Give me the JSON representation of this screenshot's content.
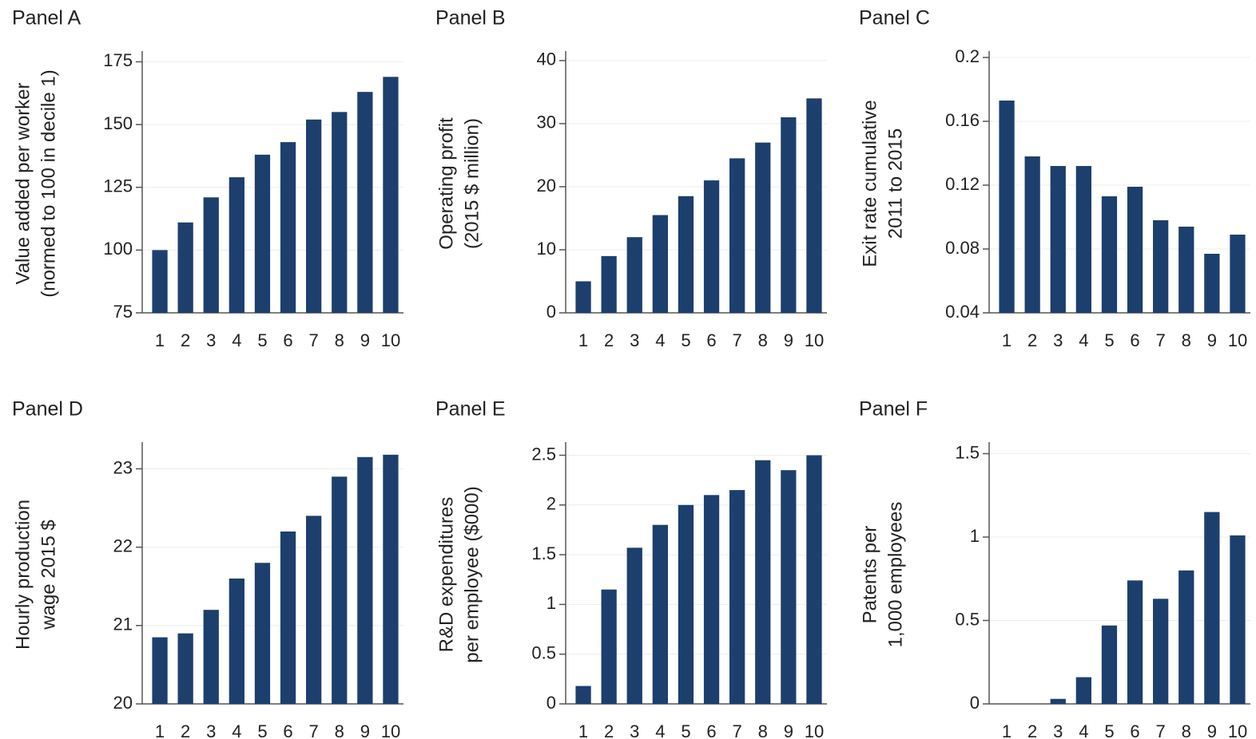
{
  "chart_data": [
    {
      "type": "bar",
      "title": "Panel A",
      "y_label": [
        "Value added per worker",
        "(normed to 100 in decile 1)"
      ],
      "categories": [
        "1",
        "2",
        "3",
        "4",
        "5",
        "6",
        "7",
        "8",
        "9",
        "10"
      ],
      "values": [
        100,
        111,
        121,
        129,
        138,
        143,
        152,
        155,
        163,
        169
      ],
      "color": "#1c3f6e",
      "ylim": [
        75,
        178
      ],
      "yticks": [
        75,
        100,
        125,
        150,
        175
      ],
      "grid": true
    },
    {
      "type": "bar",
      "title": "Panel B",
      "y_label": [
        "Operating profit",
        "(2015 $ million)"
      ],
      "categories": [
        "1",
        "2",
        "3",
        "4",
        "5",
        "6",
        "7",
        "8",
        "9",
        "10"
      ],
      "values": [
        5,
        9,
        12,
        15.5,
        18.5,
        21,
        24.5,
        27,
        31,
        34
      ],
      "color": "#1c3f6e",
      "ylim": [
        0,
        41
      ],
      "yticks": [
        0,
        10,
        20,
        30,
        40
      ],
      "grid": true
    },
    {
      "type": "bar",
      "title": "Panel C",
      "y_label": [
        "Exit rate cumulative",
        "2011 to 2015"
      ],
      "categories": [
        "1",
        "2",
        "3",
        "4",
        "5",
        "6",
        "7",
        "8",
        "9",
        "10"
      ],
      "values": [
        0.173,
        0.138,
        0.132,
        0.132,
        0.113,
        0.119,
        0.098,
        0.094,
        0.077,
        0.089
      ],
      "color": "#1c3f6e",
      "ylim": [
        0.04,
        0.202
      ],
      "yticks": [
        0.04,
        0.08,
        0.12,
        0.16,
        0.2
      ],
      "grid": true
    },
    {
      "type": "bar",
      "title": "Panel D",
      "y_label": [
        "Hourly production",
        "wage 2015 $"
      ],
      "categories": [
        "1",
        "2",
        "3",
        "4",
        "5",
        "6",
        "7",
        "8",
        "9",
        "10"
      ],
      "values": [
        20.85,
        20.9,
        21.2,
        21.6,
        21.8,
        22.2,
        22.4,
        22.9,
        23.15,
        23.18
      ],
      "color": "#1c3f6e",
      "ylim": [
        20,
        23.3
      ],
      "yticks": [
        20,
        21,
        22,
        23
      ],
      "grid": true
    },
    {
      "type": "bar",
      "title": "Panel E",
      "y_label": [
        "R&D expenditures",
        "per employee ($000)"
      ],
      "categories": [
        "1",
        "2",
        "3",
        "4",
        "5",
        "6",
        "7",
        "8",
        "9",
        "10"
      ],
      "values": [
        0.18,
        1.15,
        1.57,
        1.8,
        2.0,
        2.1,
        2.15,
        2.45,
        2.35,
        2.5
      ],
      "color": "#1c3f6e",
      "ylim": [
        0,
        2.6
      ],
      "yticks": [
        0,
        0.5,
        1,
        1.5,
        2,
        2.5
      ],
      "grid": true
    },
    {
      "type": "bar",
      "title": "Panel F",
      "y_label": [
        "Patents per",
        "1,000 employees"
      ],
      "categories": [
        "1",
        "2",
        "3",
        "4",
        "5",
        "6",
        "7",
        "8",
        "9",
        "10"
      ],
      "values": [
        0,
        0,
        0.03,
        0.16,
        0.47,
        0.74,
        0.63,
        0.8,
        1.15,
        1.01
      ],
      "color": "#1c3f6e",
      "ylim": [
        0,
        1.55
      ],
      "yticks": [
        0,
        0.5,
        1,
        1.5
      ],
      "grid": true
    }
  ]
}
